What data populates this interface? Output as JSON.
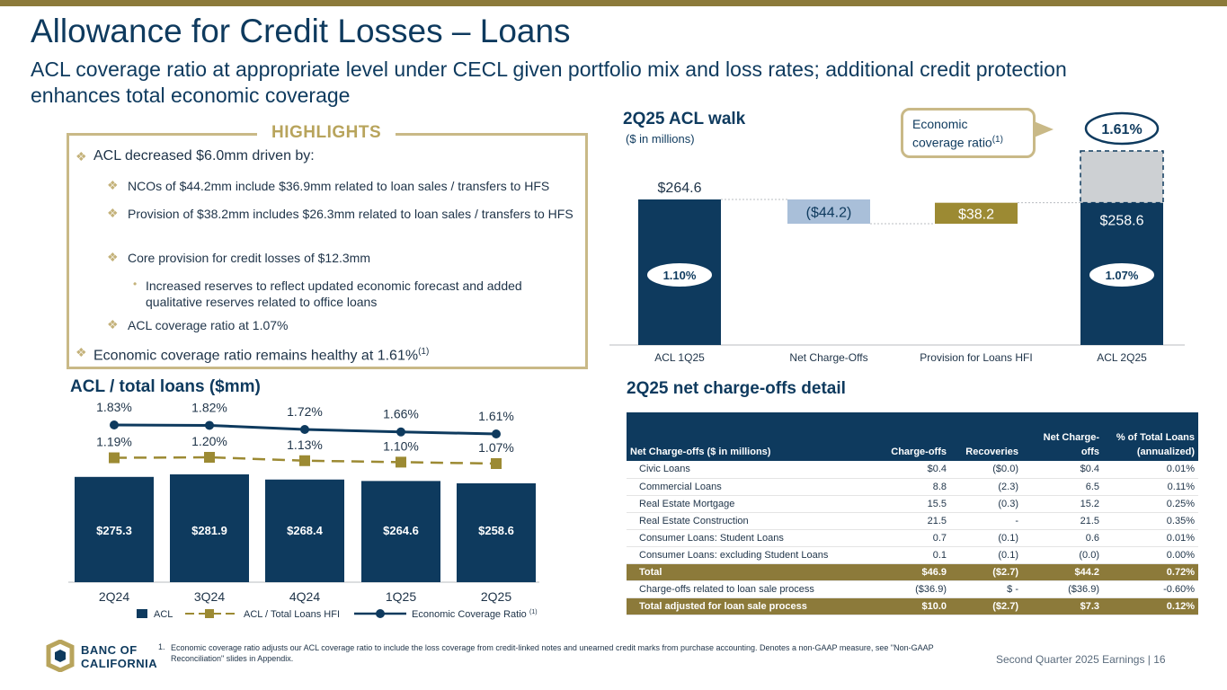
{
  "title": "Allowance for Credit Losses – Loans",
  "subtitle": "ACL coverage ratio at appropriate level under CECL given portfolio mix and loss rates; additional credit protection enhances total economic coverage",
  "highlights": {
    "title": "HIGHLIGHTS",
    "item1": "ACL decreased $6.0mm driven by:",
    "item2": "NCOs of $44.2mm include $36.9mm related to loan sales / transfers to HFS",
    "item3": "Provision of $38.2mm includes $26.3mm related to loan sales / transfers to HFS",
    "item4": "Core provision for credit losses of $12.3mm",
    "item5": "Increased reserves to reflect updated economic forecast and added qualitative reserves related to office loans",
    "item6": "ACL coverage ratio at 1.07%",
    "item7": "Economic coverage ratio remains healthy at 1.61%",
    "item7_sup": "(1)"
  },
  "walk": {
    "title": "2Q25 ACL walk",
    "subtitle": "($ in millions)",
    "callout_line1": "Economic",
    "callout_line2": "coverage ratio",
    "callout_sup": "(1)",
    "econ_ratio": "1.61%"
  },
  "acl_total": {
    "title": "ACL / total loans ($mm)"
  },
  "nco": {
    "title": "2Q25 net charge-offs detail",
    "headers": [
      "Net Charge-offs ($ in millions)",
      "Charge-offs",
      "Recoveries",
      "Net Charge-offs",
      "% of Total Loans (annualized)"
    ],
    "rows": [
      [
        "Civic Loans",
        "$0.4",
        "($0.0)",
        "$0.4",
        "0.01%"
      ],
      [
        "Commercial Loans",
        "8.8",
        "(2.3)",
        "6.5",
        "0.11%"
      ],
      [
        "Real Estate Mortgage",
        "15.5",
        "(0.3)",
        "15.2",
        "0.25%"
      ],
      [
        "Real Estate Construction",
        "21.5",
        "-",
        "21.5",
        "0.35%"
      ],
      [
        "Consumer Loans: Student Loans",
        "0.7",
        "(0.1)",
        "0.6",
        "0.01%"
      ],
      [
        "Consumer Loans: excluding Student Loans",
        "0.1",
        "(0.1)",
        "(0.0)",
        "0.00%"
      ]
    ],
    "total": [
      "Total",
      "$46.9",
      "($2.7)",
      "$44.2",
      "0.72%"
    ],
    "sale_row": [
      "Charge-offs related to loan sale process",
      "($36.9)",
      "$ -",
      "($36.9)",
      "-0.60%"
    ],
    "adj_total": [
      "Total adjusted for loan sale process",
      "$10.0",
      "($2.7)",
      "$7.3",
      "0.12%"
    ]
  },
  "footer": {
    "note_num": "1.",
    "note": "Economic coverage ratio adjusts our ACL coverage ratio to include the loss coverage from credit-linked notes and unearned credit marks from purchase accounting. Denotes a non-GAAP measure, see \"Non-GAAP Reconciliation\" slides in Appendix.",
    "logo_line1": "BANC OF",
    "logo_line2": "CALIFORNIA",
    "page": "Second Quarter 2025 Earnings |  16"
  },
  "colors": {
    "navy": "#0e3a5e",
    "gold": "#8c7a3a",
    "light_gold": "#c9b987",
    "light_blue": "#a9bfd9",
    "gray": "#cdd0d3"
  },
  "chart_data": [
    {
      "type": "bar",
      "subtype": "waterfall",
      "categories": [
        "ACL 1Q25",
        "Net Charge-Offs",
        "Provision for Loans HFI",
        "ACL 2Q25"
      ],
      "values": [
        264.6,
        -44.2,
        38.2,
        258.6
      ],
      "value_labels": [
        "$264.6",
        "($44.2)",
        "$38.2",
        "$258.6"
      ],
      "ratio_labels": [
        "1.10%",
        "",
        "",
        "1.07%"
      ],
      "economic_ratio_label": "1.61%"
    },
    {
      "type": "bar",
      "categories": [
        "2Q24",
        "3Q24",
        "4Q24",
        "1Q25",
        "2Q25"
      ],
      "series": [
        {
          "name": "ACL",
          "type": "bar",
          "values": [
            275.3,
            281.9,
            268.4,
            264.6,
            258.6
          ],
          "labels": [
            "$275.3",
            "$281.9",
            "$268.4",
            "$264.6",
            "$258.6"
          ]
        },
        {
          "name": "ACL / Total Loans HFI",
          "type": "line",
          "values": [
            1.19,
            1.2,
            1.13,
            1.1,
            1.07
          ],
          "labels": [
            "1.19%",
            "1.20%",
            "1.13%",
            "1.10%",
            "1.07%"
          ]
        },
        {
          "name": "Economic Coverage Ratio",
          "name_sup": "(1)",
          "type": "line",
          "values": [
            1.83,
            1.82,
            1.72,
            1.66,
            1.61
          ],
          "labels": [
            "1.83%",
            "1.82%",
            "1.72%",
            "1.66%",
            "1.61%"
          ]
        }
      ]
    }
  ]
}
